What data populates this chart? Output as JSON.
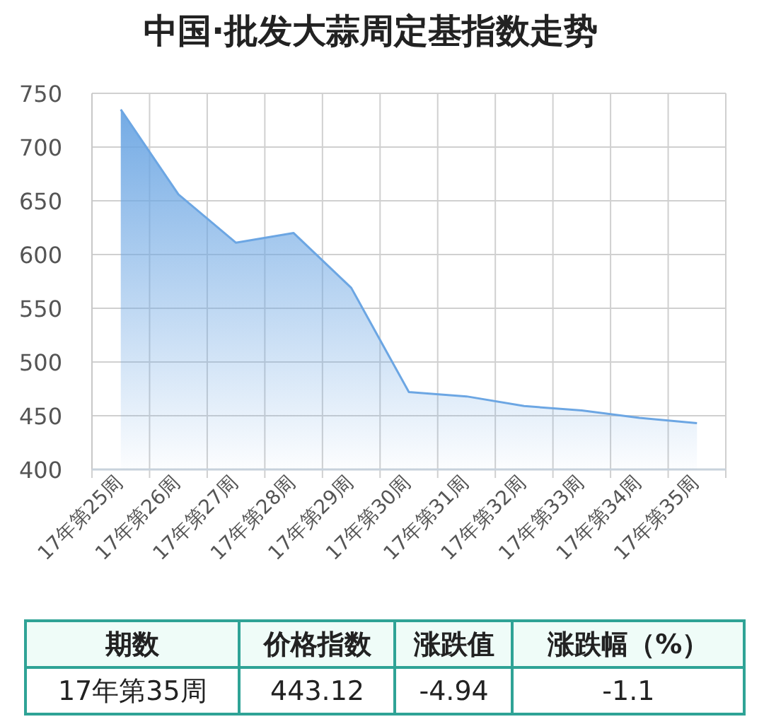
{
  "chart_data": {
    "type": "area",
    "title": "中国·批发大蒜周定基指数走势",
    "categories": [
      "17年第25周",
      "17年第26周",
      "17年第27周",
      "17年第28周",
      "17年第29周",
      "17年第30周",
      "17年第31周",
      "17年第32周",
      "17年第33周",
      "17年第34周",
      "17年第35周"
    ],
    "series": [
      {
        "color": "#6ca6e3",
        "values": [
          735,
          656,
          611,
          620,
          569,
          472,
          468,
          459,
          455,
          448,
          443.12
        ]
      }
    ],
    "ylim": [
      400,
      750
    ],
    "yticks": [
      400,
      450,
      500,
      550,
      600,
      650,
      700,
      750
    ],
    "grid": true,
    "marker": "none",
    "annotations": [
      "期数",
      "价格指数",
      "涨跌值",
      "涨跌幅（%）",
      "17年第35周",
      "443.12",
      "-4.94",
      "-1.1"
    ]
  }
}
